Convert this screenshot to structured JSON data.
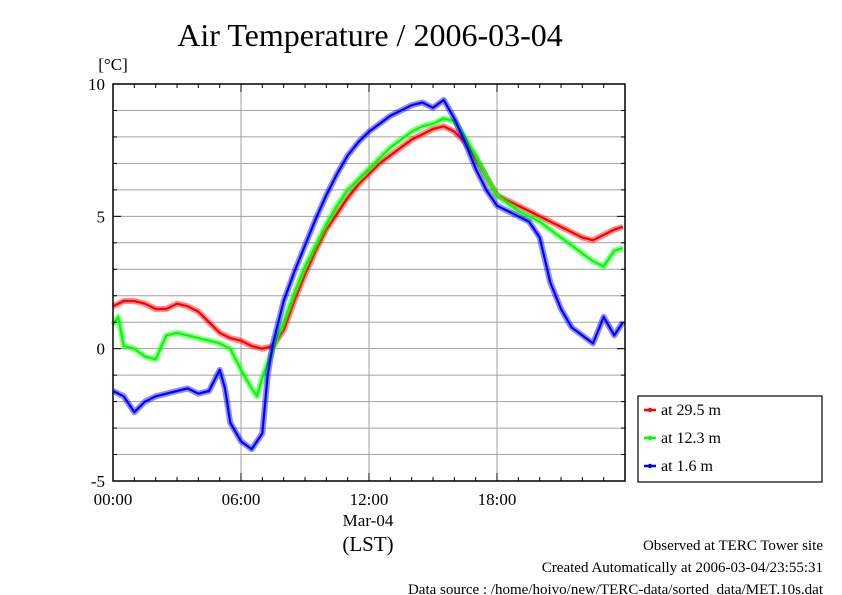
{
  "chart_data": {
    "type": "line",
    "title": "Air Temperature / 2006-03-04",
    "ylabel": "[°C]",
    "xlabel": "(LST)",
    "date_label": "Mar-04",
    "ylim": [
      -5,
      10
    ],
    "xlim_hours": [
      0,
      24
    ],
    "y_ticks": [
      {
        "value": 10,
        "label": "10"
      },
      {
        "value": 5,
        "label": "5"
      },
      {
        "value": 0,
        "label": "0"
      },
      {
        "value": -5,
        "label": "-5"
      }
    ],
    "x_ticks": [
      {
        "value": 0,
        "label": "00:00"
      },
      {
        "value": 6,
        "label": "06:00"
      },
      {
        "value": 12,
        "label": "12:00"
      },
      {
        "value": 18,
        "label": "18:00"
      }
    ],
    "grid": true,
    "legend_position": "right-bottom",
    "series": [
      {
        "name": "at 29.5 m",
        "color": "#ff0000",
        "x": [
          0,
          0.5,
          1,
          1.5,
          2,
          2.5,
          3,
          3.5,
          4,
          4.5,
          5,
          5.5,
          6,
          6.5,
          7,
          7.5,
          8,
          8.5,
          9,
          9.5,
          10,
          10.5,
          11,
          11.5,
          12,
          12.5,
          13,
          13.5,
          14,
          14.5,
          15,
          15.5,
          16,
          16.5,
          17,
          17.5,
          18,
          18.5,
          19,
          19.5,
          20,
          20.5,
          21,
          21.5,
          22,
          22.5,
          23,
          23.5,
          23.9
        ],
        "y": [
          1.6,
          1.8,
          1.8,
          1.7,
          1.5,
          1.5,
          1.7,
          1.6,
          1.4,
          1.0,
          0.6,
          0.4,
          0.3,
          0.1,
          0.0,
          0.1,
          0.7,
          1.8,
          2.8,
          3.7,
          4.5,
          5.1,
          5.7,
          6.2,
          6.6,
          7.0,
          7.3,
          7.6,
          7.9,
          8.1,
          8.3,
          8.4,
          8.2,
          7.8,
          7.2,
          6.5,
          5.8,
          5.6,
          5.4,
          5.2,
          5.0,
          4.8,
          4.6,
          4.4,
          4.2,
          4.1,
          4.3,
          4.5,
          4.6
        ]
      },
      {
        "name": "at 12.3 m",
        "color": "#00ff00",
        "x": [
          0,
          0.25,
          0.5,
          1,
          1.5,
          2,
          2.5,
          3,
          3.5,
          4,
          4.5,
          5,
          5.5,
          6,
          6.5,
          6.75,
          7,
          7.5,
          8,
          8.5,
          9,
          9.5,
          10,
          10.5,
          11,
          11.5,
          12,
          12.5,
          13,
          13.5,
          14,
          14.5,
          15,
          15.5,
          16,
          16.5,
          17,
          17.5,
          18,
          18.5,
          19,
          19.5,
          20,
          20.5,
          21,
          21.5,
          22,
          22.5,
          23,
          23.5,
          23.9
        ],
        "y": [
          0.9,
          1.2,
          0.1,
          0.0,
          -0.3,
          -0.4,
          0.5,
          0.6,
          0.5,
          0.4,
          0.3,
          0.2,
          0.0,
          -0.8,
          -1.5,
          -1.8,
          -1.1,
          0.0,
          1.0,
          2.1,
          3.1,
          3.9,
          4.7,
          5.4,
          6.0,
          6.4,
          6.8,
          7.2,
          7.6,
          7.9,
          8.2,
          8.4,
          8.5,
          8.7,
          8.6,
          8.0,
          7.3,
          6.5,
          5.8,
          5.5,
          5.2,
          5.0,
          4.8,
          4.5,
          4.2,
          3.9,
          3.6,
          3.3,
          3.1,
          3.7,
          3.8
        ]
      },
      {
        "name": "at 1.6 m",
        "color": "#0000ff",
        "x": [
          0,
          0.5,
          1,
          1.5,
          2,
          2.5,
          3,
          3.5,
          4,
          4.5,
          5,
          5.25,
          5.5,
          6,
          6.5,
          7,
          7.25,
          7.5,
          8,
          8.5,
          9,
          9.5,
          10,
          10.5,
          11,
          11.5,
          12,
          12.5,
          13,
          13.5,
          14,
          14.5,
          15,
          15.5,
          16,
          16.5,
          17,
          17.5,
          18,
          18.5,
          19,
          19.5,
          20,
          20.5,
          21,
          21.5,
          22,
          22.5,
          23,
          23.5,
          23.9
        ],
        "y": [
          -1.6,
          -1.8,
          -2.4,
          -2.0,
          -1.8,
          -1.7,
          -1.6,
          -1.5,
          -1.7,
          -1.6,
          -0.8,
          -1.5,
          -2.8,
          -3.5,
          -3.8,
          -3.2,
          -1.0,
          0.2,
          1.8,
          2.9,
          3.9,
          4.9,
          5.8,
          6.6,
          7.3,
          7.8,
          8.2,
          8.5,
          8.8,
          9.0,
          9.2,
          9.3,
          9.1,
          9.4,
          8.7,
          7.8,
          6.8,
          6.0,
          5.4,
          5.2,
          5.0,
          4.8,
          4.2,
          2.5,
          1.5,
          0.8,
          0.5,
          0.2,
          1.2,
          0.5,
          1.0
        ]
      }
    ]
  },
  "footer": {
    "site": "Observed at TERC Tower site",
    "created": "Created Automatically at 2006-03-04/23:55:31",
    "source": "Data source : /home/hoivo/new/TERC-data/sorted_data/MET.10s.dat"
  }
}
